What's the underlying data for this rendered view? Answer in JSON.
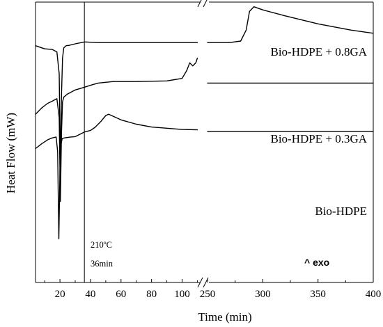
{
  "chart_data": {
    "type": "line",
    "xlabel": "Time (min)",
    "ylabel": "Heat Flow (mW)",
    "x_axis_break": [
      110,
      250
    ],
    "xlim_left": [
      4,
      113
    ],
    "xlim_right": [
      250,
      400
    ],
    "x_ticks_left": [
      20,
      40,
      60,
      80,
      100
    ],
    "x_ticks_right": [
      250,
      300,
      350,
      400
    ],
    "vertical_marker": {
      "x": 36,
      "label_temp": "210ºC",
      "label_time": "36min"
    },
    "exo_label": "^ exo",
    "y_ticks_shown": false,
    "series": [
      {
        "name": "Bio-HDPE + 0.8GA",
        "x": [
          4,
          10,
          15,
          18,
          19.5,
          20.3,
          21,
          21.7,
          22.5,
          24,
          26,
          30,
          36,
          45,
          60,
          80,
          100,
          110,
          250,
          270,
          280,
          285,
          288,
          292,
          300,
          320,
          350,
          380,
          400
        ],
        "y": [
          48,
          47,
          46.8,
          46,
          39,
          10,
          32,
          44,
          47.3,
          48,
          48.1,
          48.6,
          49.2,
          49,
          49,
          49,
          49,
          49,
          49,
          49,
          49.5,
          53,
          59,
          60.5,
          59.5,
          57.6,
          55,
          53,
          52
        ]
      },
      {
        "name": "Bio-HDPE + 0.3GA",
        "x": [
          4,
          8,
          12,
          15,
          18,
          19.5,
          20.3,
          21,
          21.7,
          22.5,
          25,
          30,
          35,
          40,
          45,
          55,
          70,
          90,
          100,
          103,
          105,
          107,
          109,
          110,
          250,
          400
        ],
        "y": [
          26,
          28,
          29.5,
          30.2,
          31,
          25,
          -2,
          20,
          30,
          31.5,
          32.5,
          33.8,
          34.5,
          35.3,
          36,
          36.5,
          36.5,
          36.7,
          37.5,
          40,
          42.5,
          41.5,
          42.5,
          44,
          36,
          36
        ]
      },
      {
        "name": "Bio-HDPE",
        "x": [
          4,
          8,
          12,
          15,
          17.5,
          18.5,
          19.3,
          20,
          20.7,
          21.5,
          23,
          27,
          30,
          34,
          36,
          40,
          43,
          47,
          50,
          52,
          55,
          60,
          70,
          80,
          90,
          100,
          110,
          250,
          400
        ],
        "y": [
          15,
          16.5,
          17.8,
          18.4,
          18.7,
          14,
          -14,
          8,
          16.5,
          18.2,
          18.4,
          18.7,
          18.8,
          19.8,
          20.3,
          20.8,
          21.8,
          23.8,
          25.6,
          26,
          25.3,
          24.2,
          22.8,
          21.9,
          21.5,
          21.1,
          21,
          20.5,
          20.5
        ]
      }
    ]
  }
}
